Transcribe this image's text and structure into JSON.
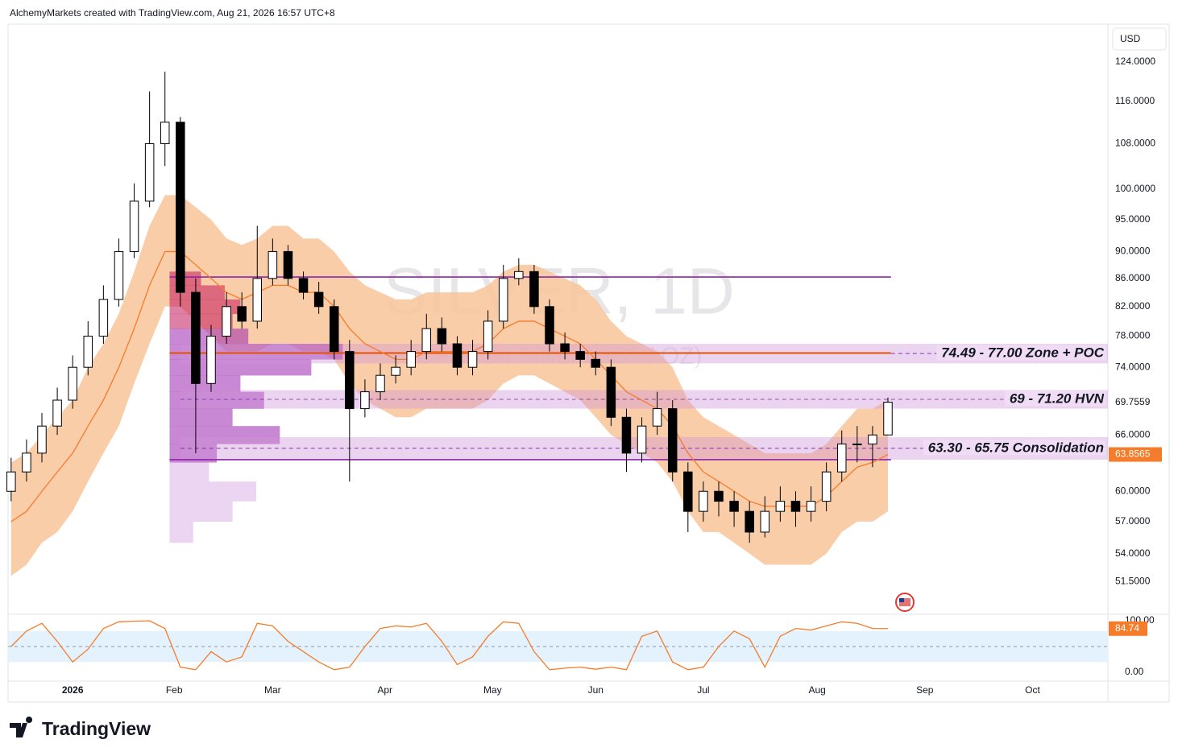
{
  "header": {
    "credit": "AlchemyMarkets created with TradingView.com, Aug 21, 2026 16:57 UTC+8",
    "currency": "USD",
    "logo": "TradingView"
  },
  "chart_data": {
    "type": "candlestick",
    "title": "SILVER, 1D",
    "subtitle": "CFDs on Silver (US$ / OZ)",
    "log_scale": true,
    "ylim": [
      48.8,
      132.2
    ],
    "yticks": [
      {
        "value": 124,
        "label": "124.0000"
      },
      {
        "value": 116,
        "label": "116.0000"
      },
      {
        "value": 108,
        "label": "108.0000"
      },
      {
        "value": 100,
        "label": "100.0000"
      },
      {
        "value": 95,
        "label": "95.0000"
      },
      {
        "value": 90,
        "label": "90.0000"
      },
      {
        "value": 86,
        "label": "86.0000"
      },
      {
        "value": 82,
        "label": "82.0000"
      },
      {
        "value": 78,
        "label": "78.0000"
      },
      {
        "value": 74,
        "label": "74.0000"
      },
      {
        "value": 66,
        "label": "66.0000"
      },
      {
        "value": 60,
        "label": "60.0000"
      },
      {
        "value": 57,
        "label": "57.0000"
      },
      {
        "value": 54,
        "label": "54.0000"
      },
      {
        "value": 51.5,
        "label": "51.5000"
      }
    ],
    "xlim": [
      -0.2,
      71.3
    ],
    "xticks": [
      {
        "value": 4.0,
        "label": "2026"
      },
      {
        "value": 10.6,
        "label": "Feb"
      },
      {
        "value": 17.0,
        "label": "Mar"
      },
      {
        "value": 24.3,
        "label": "Apr"
      },
      {
        "value": 31.3,
        "label": "May"
      },
      {
        "value": 38.0,
        "label": "Jun"
      },
      {
        "value": 45.0,
        "label": "Jul"
      },
      {
        "value": 52.4,
        "label": "Aug"
      },
      {
        "value": 59.4,
        "label": "Sep"
      },
      {
        "value": 66.4,
        "label": "Oct"
      }
    ],
    "open": [
      60,
      62,
      64,
      67,
      70,
      74,
      78,
      83,
      90,
      98,
      108,
      112,
      84,
      72,
      78,
      82,
      80,
      86,
      90,
      86,
      84,
      82,
      76,
      69,
      71,
      73,
      74,
      76,
      79,
      77,
      74,
      76,
      80,
      86,
      87,
      82,
      77,
      76,
      75,
      74,
      68,
      64,
      67,
      69,
      62,
      58,
      60,
      59,
      58,
      56,
      58,
      59,
      58,
      59,
      62,
      65,
      65,
      66
    ],
    "high": [
      63.5,
      65.5,
      68.5,
      71.5,
      75.5,
      80,
      85,
      92,
      101,
      118,
      122,
      113,
      86,
      79.5,
      84,
      84,
      94,
      92,
      91,
      87,
      85.5,
      83,
      77.5,
      72.5,
      74.5,
      75.5,
      77.5,
      81,
      80.5,
      78,
      77.5,
      81.5,
      88,
      89,
      88,
      83,
      78.5,
      77,
      76,
      75,
      69,
      68,
      71,
      70,
      63,
      61,
      61,
      60,
      59,
      59.5,
      60.5,
      60,
      60.5,
      63,
      66.5,
      67,
      67,
      70.3
    ],
    "low": [
      59,
      61,
      63,
      66,
      69,
      73,
      77,
      82,
      89,
      97,
      104,
      82,
      64,
      71,
      77,
      79,
      79,
      85,
      85,
      83,
      81,
      75,
      61,
      68,
      70,
      72,
      73,
      75,
      76,
      73,
      73,
      75,
      79,
      85,
      81,
      76,
      75,
      74,
      73,
      67,
      62,
      63,
      66,
      61,
      56,
      57,
      57.5,
      56.5,
      55,
      55.5,
      57,
      56.5,
      57,
      58,
      61,
      63,
      62.5,
      66
    ],
    "close": [
      62,
      64,
      67,
      70,
      74,
      78,
      83,
      90,
      98,
      108,
      112,
      84,
      72,
      78,
      82,
      80,
      86,
      90,
      86,
      84,
      82,
      76,
      69,
      71,
      73,
      74,
      76,
      79,
      77,
      74,
      76,
      80,
      86,
      87,
      82,
      77,
      76,
      75,
      74,
      68,
      64,
      67,
      69,
      62,
      58,
      60,
      59,
      58,
      56,
      58,
      59,
      58,
      59,
      62,
      65,
      65,
      66,
      69.7559
    ],
    "last_label": "69.7559",
    "ma": [
      57,
      58,
      60,
      62,
      64,
      67,
      70,
      74,
      79,
      85,
      90,
      90,
      88,
      86,
      84,
      83,
      84,
      85,
      85,
      84,
      84,
      82,
      79,
      77,
      76,
      75,
      75,
      76,
      76,
      76,
      76,
      77,
      79,
      80,
      80,
      79,
      78,
      77,
      75,
      73,
      71,
      70,
      69,
      67,
      64,
      62,
      61,
      60,
      59,
      58.5,
      58.5,
      58.5,
      58.5,
      59.5,
      61,
      62.5,
      63,
      63.8565
    ],
    "ma_label": "63.8565",
    "ma_color": "#f57c2a",
    "band_upper": [
      63,
      64,
      66,
      68,
      70,
      74,
      77,
      81,
      87,
      94,
      99,
      99,
      97,
      95,
      92,
      91,
      92,
      94,
      94,
      92,
      92,
      90,
      87,
      85,
      84,
      83,
      83,
      84,
      84,
      84,
      84,
      85,
      87,
      88,
      88,
      87,
      86,
      85,
      83,
      80,
      78,
      77,
      76,
      74,
      70,
      68,
      67,
      66,
      65,
      64,
      64,
      64,
      64,
      65,
      67,
      69,
      69,
      70
    ],
    "band_lower": [
      52,
      53,
      55,
      56,
      58,
      61,
      64,
      67,
      72,
      77,
      82,
      82,
      80,
      78,
      76,
      76,
      76,
      77,
      77,
      76,
      76,
      75,
      72,
      70,
      69,
      68,
      68,
      69,
      69,
      69,
      69,
      70,
      72,
      73,
      73,
      72,
      71,
      70,
      68,
      66,
      65,
      64,
      63,
      61,
      58,
      56,
      56,
      55,
      54,
      53,
      53,
      53,
      53,
      54,
      56,
      57,
      57,
      58
    ],
    "band_color": "#f9c49a",
    "zones": [
      {
        "low": 74.49,
        "high": 77.0,
        "label": "74.49 - 77.00 Zone + POC"
      },
      {
        "low": 69,
        "high": 71.2,
        "label": "69 - 71.20 HVN"
      },
      {
        "low": 63.3,
        "high": 65.75,
        "label": "63.30 - 65.75 Consolidation"
      }
    ],
    "levels": [
      86.2,
      63.3
    ],
    "poc": 75.8,
    "volume_profile": {
      "prices": [
        56,
        58,
        60,
        62,
        64,
        66,
        68,
        70,
        72,
        74,
        76,
        78,
        80,
        82,
        84,
        86
      ],
      "volumes": [
        15,
        40,
        55,
        25,
        30,
        70,
        40,
        60,
        45,
        90,
        110,
        50,
        40,
        45,
        35,
        20
      ]
    },
    "oscillator": {
      "values": [
        50,
        80,
        95,
        60,
        20,
        45,
        85,
        98,
        99,
        100,
        85,
        10,
        5,
        40,
        20,
        30,
        95,
        90,
        60,
        40,
        20,
        5,
        10,
        50,
        85,
        90,
        88,
        95,
        60,
        15,
        30,
        70,
        98,
        95,
        40,
        5,
        8,
        10,
        6,
        10,
        5,
        70,
        80,
        20,
        5,
        10,
        50,
        80,
        65,
        10,
        70,
        85,
        82,
        90,
        98,
        95,
        85,
        84.74
      ],
      "label": "84.74",
      "ylim": [
        -15.6,
        109.4
      ],
      "yticks": [
        {
          "value": 100,
          "label": "100.00"
        },
        {
          "value": 0,
          "label": "0.00"
        }
      ],
      "band": [
        20,
        80
      ],
      "mid": 50
    }
  }
}
